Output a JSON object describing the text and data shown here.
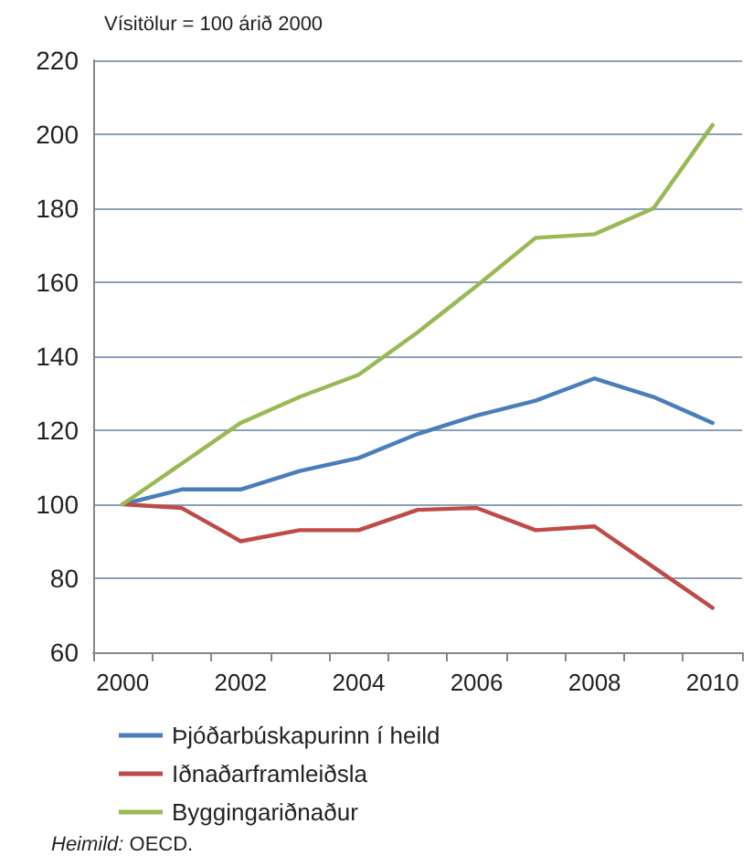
{
  "chart_data": {
    "type": "line",
    "ylabel": "Vísitölur = 100 árið 2000",
    "categories": [
      "2000",
      null,
      "2002",
      null,
      "2004",
      null,
      "2006",
      null,
      "2008",
      null,
      "2010"
    ],
    "series": [
      {
        "name": "Þjóðarbúskapurinn í heild",
        "color": "#4a7ebb",
        "values": [
          100,
          104,
          104,
          109,
          112.5,
          119,
          124,
          128,
          134,
          129,
          122
        ]
      },
      {
        "name": "Iðnaðarframleiðsla",
        "color": "#be4b48",
        "values": [
          100,
          99,
          90,
          93,
          93,
          98.5,
          99,
          93,
          94,
          83,
          72
        ]
      },
      {
        "name": "Byggingariðnaður",
        "color": "#98b954",
        "values": [
          100,
          111,
          122,
          129,
          135,
          146.5,
          159,
          172,
          173,
          180,
          202.5
        ]
      }
    ],
    "ylim": [
      60,
      220
    ],
    "yticks": [
      60,
      80,
      100,
      120,
      140,
      160,
      180,
      200,
      220
    ],
    "grid": "y",
    "legend": "bottom left",
    "marker": "none",
    "line_style": "solid",
    "annotations": [
      "Heimild: OECD."
    ]
  }
}
